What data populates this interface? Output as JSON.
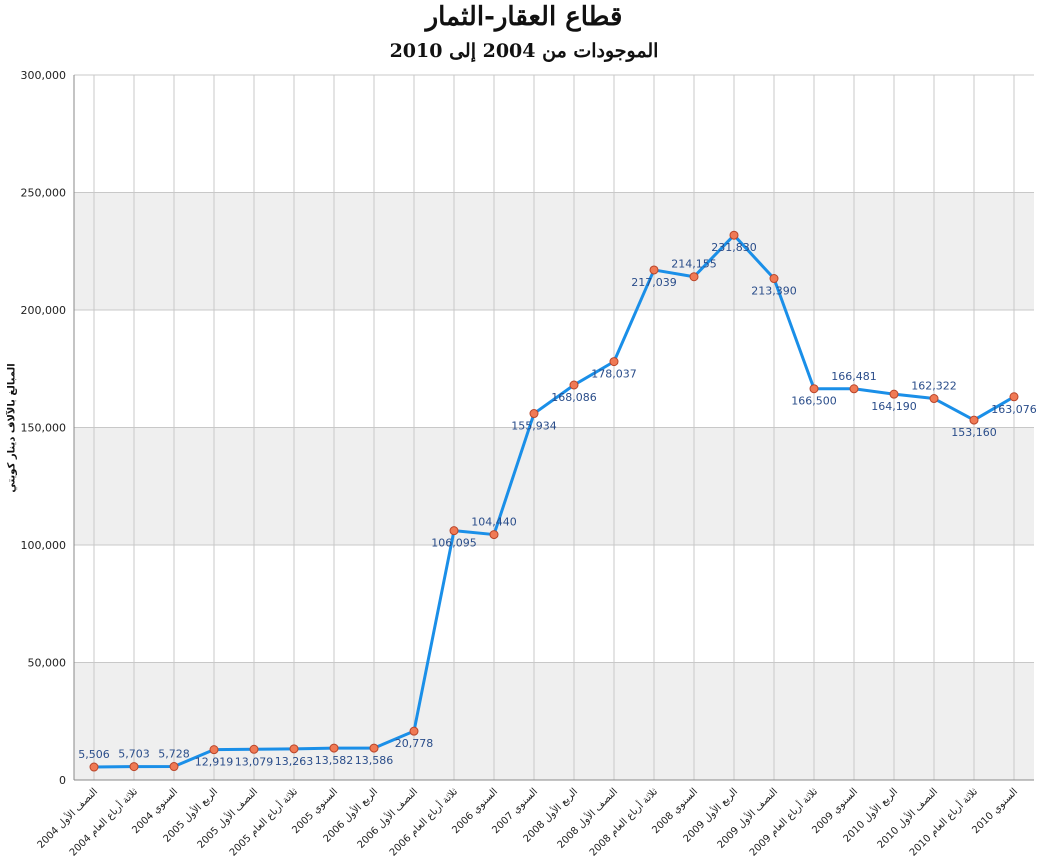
{
  "chart_data": {
    "type": "line",
    "title": "قطاع العقار-الثمار",
    "subtitle": "الموجودات من 2004 إلى 2010",
    "xlabel": "",
    "ylabel": "المبالغ بالآلاف دينار كويتي",
    "ylim": [
      0,
      300000
    ],
    "yticks": [
      "0",
      "50,000",
      "100,000",
      "150,000",
      "200,000",
      "250,000",
      "300,000"
    ],
    "ytick_values": [
      0,
      50000,
      100000,
      150000,
      200000,
      250000,
      300000
    ],
    "grid": true,
    "colors": {
      "line": "#1a8fe8",
      "marker_fill": "#f07a55",
      "marker_stroke": "#b8452a",
      "band": "#efefef",
      "grid": "#c8c8c8"
    },
    "categories": [
      "النصف الأول 2004",
      "ثلاثة أرباع العام 2004",
      "السنوي 2004",
      "الربع الأول 2005",
      "النصف الأول 2005",
      "ثلاثة أرباع العام 2005",
      "السنوي 2005",
      "الربع الأول 2006",
      "النصف الأول 2006",
      "ثلاثة أرباع العام 2006",
      "السنوي 2006",
      "السنوي 2007",
      "الربع الأول 2008",
      "النصف الأول 2008",
      "ثلاثة أرباع العام 2008",
      "السنوي 2008",
      "الربع الأول 2009",
      "النصف الأول 2009",
      "ثلاثة أرباع العام 2009",
      "السنوي 2009",
      "الربع الأول 2010",
      "النصف الأول 2010",
      "ثلاثة أرباع العام 2010",
      "السنوي 2010"
    ],
    "series": [
      {
        "values": [
          5506,
          5703,
          5728,
          12919,
          13079,
          13263,
          13582,
          13586,
          20778,
          106095,
          104440,
          155934,
          168086,
          178037,
          217039,
          214155,
          231830,
          213390,
          166500,
          166481,
          164190,
          162322,
          153160,
          163076
        ],
        "labels": [
          "5,506",
          "5,703",
          "5,728",
          "12,919",
          "13,079",
          "13,263",
          "13,582",
          "13,586",
          "20,778",
          "106,095",
          "104,440",
          "155,934",
          "168,086",
          "178,037",
          "217,039",
          "214,155",
          "231,830",
          "213,390",
          "166,500",
          "166,481",
          "164,190",
          "162,322",
          "153,160",
          "163,076"
        ],
        "label_pos": [
          "above",
          "above",
          "above",
          "below",
          "below",
          "below",
          "below",
          "below",
          "below",
          "below",
          "above",
          "below",
          "below",
          "below",
          "below",
          "above",
          "below",
          "below",
          "below",
          "above",
          "below",
          "above",
          "below",
          "below"
        ]
      }
    ]
  }
}
